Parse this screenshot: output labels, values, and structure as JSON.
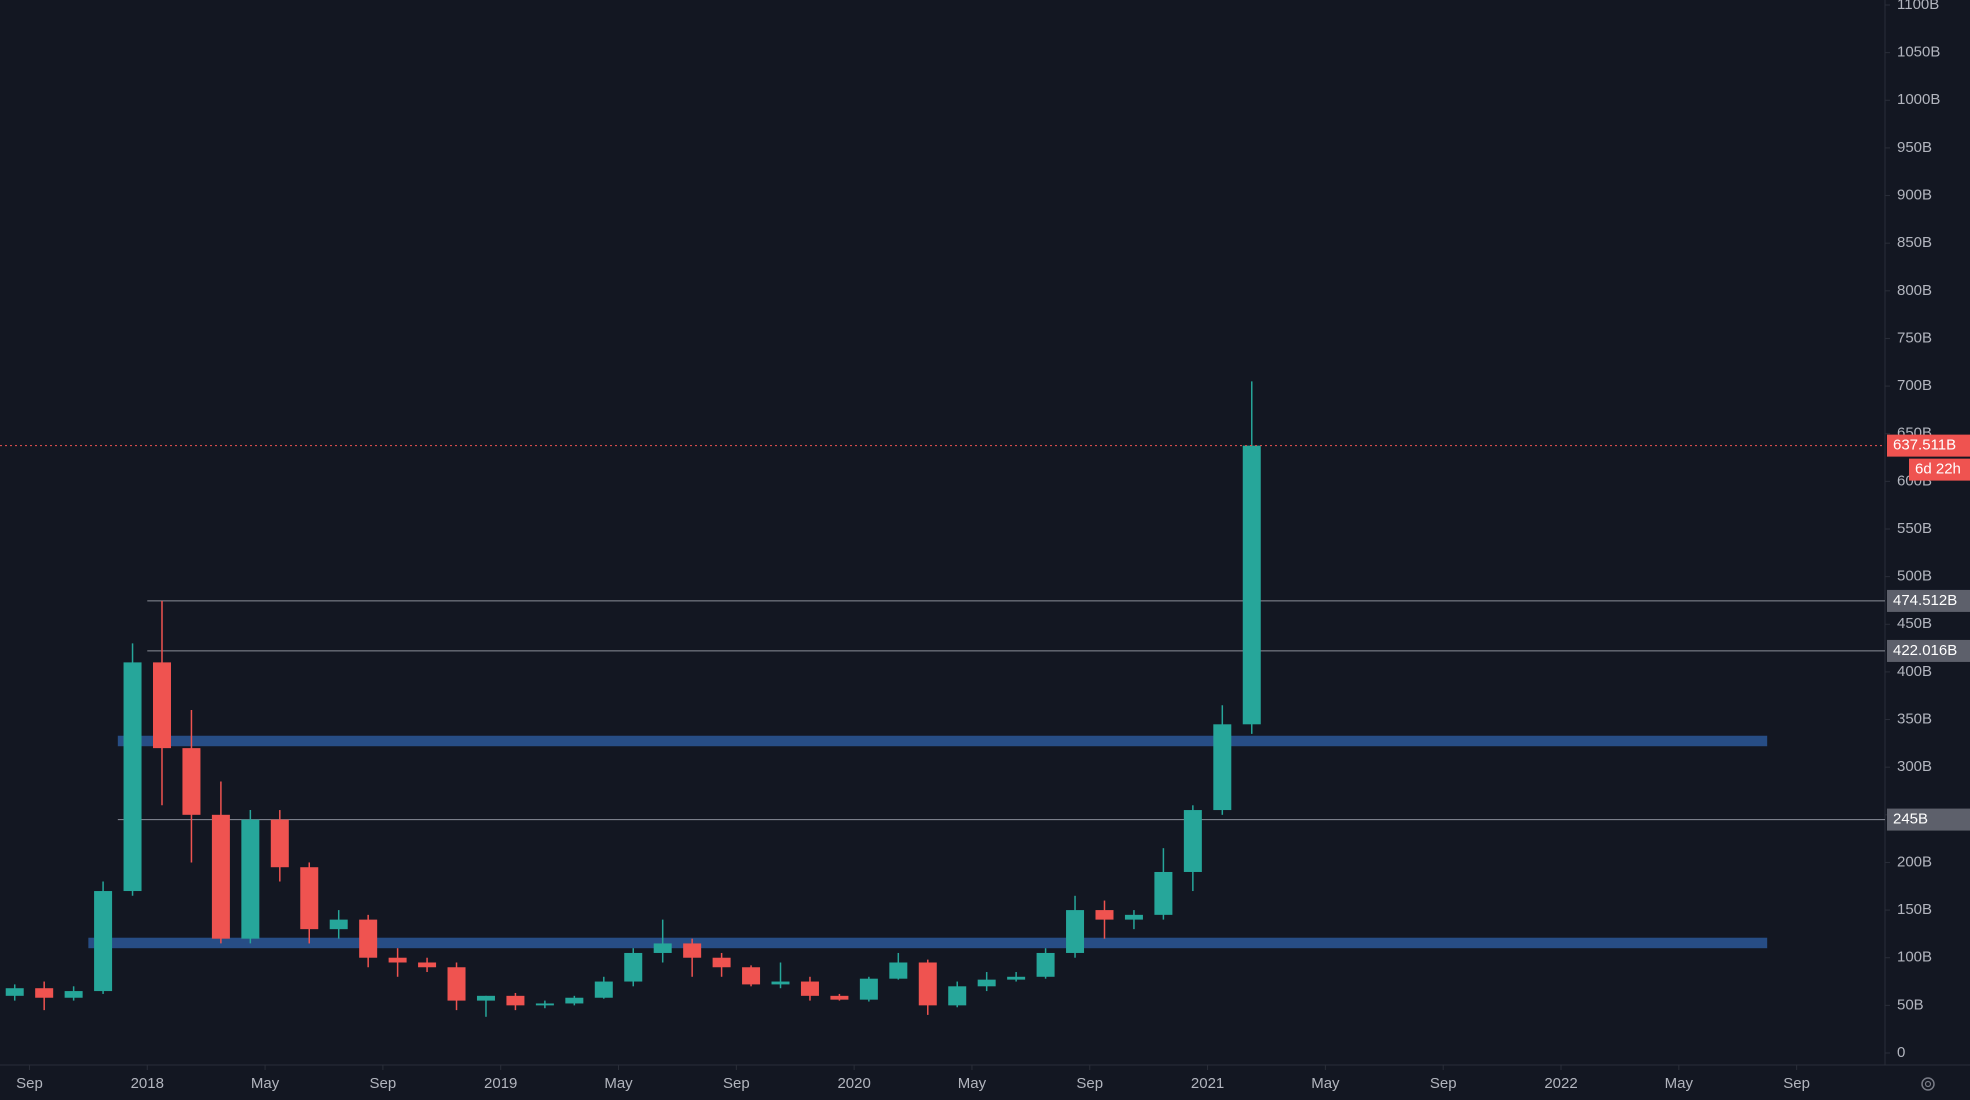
{
  "chart_data": {
    "type": "candlestick",
    "x": [
      "2017-08",
      "2017-09",
      "2017-10",
      "2017-11",
      "2017-12",
      "2018-01",
      "2018-02",
      "2018-03",
      "2018-04",
      "2018-05",
      "2018-06",
      "2018-07",
      "2018-08",
      "2018-09",
      "2018-10",
      "2018-11",
      "2018-12",
      "2019-01",
      "2019-02",
      "2019-03",
      "2019-04",
      "2019-05",
      "2019-06",
      "2019-07",
      "2019-08",
      "2019-09",
      "2019-10",
      "2019-11",
      "2019-12",
      "2020-01",
      "2020-02",
      "2020-03",
      "2020-04",
      "2020-05",
      "2020-06",
      "2020-07",
      "2020-08",
      "2020-09",
      "2020-10",
      "2020-11",
      "2020-12",
      "2021-01",
      "2021-02"
    ],
    "open": [
      60,
      68,
      58,
      65,
      170,
      410,
      320,
      250,
      120,
      245,
      195,
      130,
      140,
      100,
      95,
      90,
      55,
      60,
      50,
      52,
      58,
      75,
      105,
      115,
      100,
      90,
      72,
      75,
      60,
      56,
      78,
      95,
      50,
      70,
      77,
      80,
      105,
      150,
      140,
      145,
      190,
      255,
      345
    ],
    "high": [
      72,
      75,
      70,
      180,
      430,
      474.512,
      360,
      285,
      255,
      255,
      200,
      150,
      145,
      110,
      100,
      95,
      60,
      63,
      55,
      60,
      80,
      110,
      140,
      120,
      105,
      92,
      95,
      80,
      62,
      80,
      105,
      98,
      75,
      85,
      85,
      110,
      165,
      160,
      150,
      215,
      260,
      365,
      705
    ],
    "low": [
      55,
      45,
      55,
      62,
      165,
      260,
      200,
      115,
      115,
      180,
      115,
      120,
      90,
      80,
      85,
      45,
      38,
      45,
      47,
      50,
      57,
      70,
      95,
      80,
      80,
      70,
      68,
      55,
      55,
      54,
      77,
      40,
      48,
      65,
      75,
      78,
      100,
      120,
      130,
      140,
      170,
      250,
      335
    ],
    "close": [
      68,
      58,
      65,
      170,
      410,
      320,
      250,
      120,
      245,
      195,
      130,
      140,
      100,
      95,
      90,
      55,
      60,
      50,
      52,
      58,
      75,
      105,
      115,
      100,
      90,
      72,
      75,
      60,
      56,
      78,
      95,
      50,
      70,
      77,
      80,
      105,
      150,
      140,
      145,
      190,
      255,
      345,
      637.511
    ],
    "up_color": "#26a69a",
    "down_color": "#ef5350",
    "xlim": [
      "2017-08",
      "2022-12"
    ],
    "xticks": [
      {
        "value": "2017-09",
        "label": "Sep"
      },
      {
        "value": "2018-01",
        "label": "2018"
      },
      {
        "value": "2018-05",
        "label": "May"
      },
      {
        "value": "2018-09",
        "label": "Sep"
      },
      {
        "value": "2019-01",
        "label": "2019"
      },
      {
        "value": "2019-05",
        "label": "May"
      },
      {
        "value": "2019-09",
        "label": "Sep"
      },
      {
        "value": "2020-01",
        "label": "2020"
      },
      {
        "value": "2020-05",
        "label": "May"
      },
      {
        "value": "2020-09",
        "label": "Sep"
      },
      {
        "value": "2021-01",
        "label": "2021"
      },
      {
        "value": "2021-05",
        "label": "May"
      },
      {
        "value": "2021-09",
        "label": "Sep"
      },
      {
        "value": "2022-01",
        "label": "2022"
      },
      {
        "value": "2022-05",
        "label": "May"
      },
      {
        "value": "2022-09",
        "label": "Sep"
      }
    ],
    "ylim": [
      0,
      1100
    ],
    "yticks": [
      0,
      {
        "value": 50,
        "label": "50B"
      },
      {
        "value": 100,
        "label": "100B"
      },
      {
        "value": 150,
        "label": "150B"
      },
      {
        "value": 200,
        "label": "200B"
      },
      {
        "value": 250,
        "label": "250B"
      },
      {
        "value": 300,
        "label": "300B"
      },
      {
        "value": 350,
        "label": "350B"
      },
      {
        "value": 400,
        "label": "400B"
      },
      {
        "value": 450,
        "label": "450B"
      },
      {
        "value": 500,
        "label": "500B"
      },
      {
        "value": 550,
        "label": "550B"
      },
      {
        "value": 600,
        "label": "600B"
      },
      {
        "value": 650,
        "label": "650B"
      },
      {
        "value": 700,
        "label": "700B"
      },
      {
        "value": 750,
        "label": "750B"
      },
      {
        "value": 800,
        "label": "800B"
      },
      {
        "value": 850,
        "label": "850B"
      },
      {
        "value": 900,
        "label": "900B"
      },
      {
        "value": 950,
        "label": "950B"
      },
      {
        "value": 1000,
        "label": "1000B"
      },
      {
        "value": 1050,
        "label": "1050B"
      },
      {
        "value": 1100,
        "label": "1100B"
      }
    ],
    "levels": [
      {
        "value": 474.512,
        "label": "474.512B",
        "start": "2018-01"
      },
      {
        "value": 422.016,
        "label": "422.016B",
        "start": "2018-01"
      },
      {
        "value": 245,
        "label": "245B",
        "start": "2017-12"
      }
    ],
    "zones": [
      {
        "y": [
          322,
          333
        ],
        "x": [
          "2017-12",
          "2022-08"
        ],
        "color": "#2b5797"
      },
      {
        "y": [
          110,
          121
        ],
        "x": [
          "2017-11",
          "2022-08"
        ],
        "color": "#2b5797"
      }
    ],
    "last_price": {
      "value": 637.511,
      "label": "637.511B",
      "countdown": "6d 22h",
      "color": "#ef5350"
    }
  }
}
